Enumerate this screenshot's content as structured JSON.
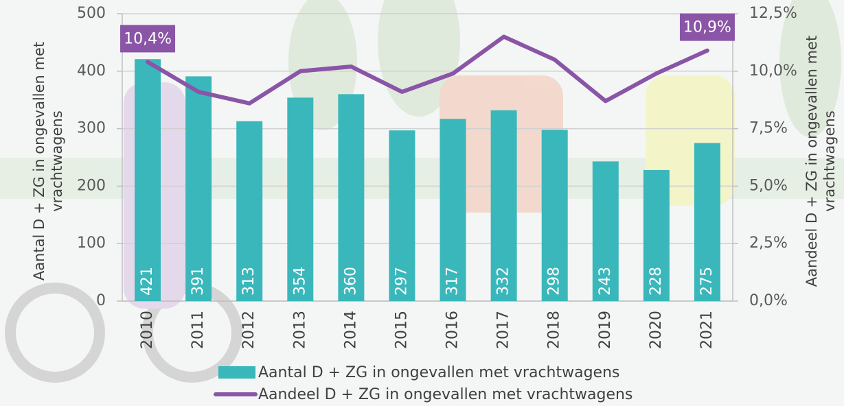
{
  "chart_data": {
    "type": "bar-line",
    "categories": [
      "2010",
      "2011",
      "2012",
      "2013",
      "2014",
      "2015",
      "2016",
      "2017",
      "2018",
      "2019",
      "2020",
      "2021"
    ],
    "series": [
      {
        "name": "Aantal D + ZG in ongevallen met vrachtwagens",
        "type": "bar",
        "color": "#3ab7bb",
        "values": [
          421,
          391,
          313,
          354,
          360,
          297,
          317,
          332,
          298,
          243,
          228,
          275
        ]
      },
      {
        "name": "Aandeel D + ZG in ongevallen met vrachtwagens",
        "type": "line",
        "axis": "y2",
        "color": "#8a55a6",
        "values": [
          10.4,
          9.1,
          8.6,
          10.0,
          10.2,
          9.1,
          9.9,
          11.5,
          10.5,
          8.7,
          9.9,
          10.9
        ],
        "value_labels": [
          "10,4%",
          null,
          null,
          null,
          null,
          null,
          null,
          null,
          null,
          null,
          null,
          "10,9%"
        ]
      }
    ],
    "ylabel": "Aantal D + ZG in ongevallen met vrachtwagens",
    "y2label": "Aandeel D + ZG in ongevallen met vrachtwagens",
    "ylim": [
      0,
      500
    ],
    "yticks": [
      0,
      100,
      200,
      300,
      400,
      500
    ],
    "y2lim": [
      0,
      12.5
    ],
    "y2ticks": [
      {
        "value": 0,
        "label": "0,0%"
      },
      {
        "value": 2.5,
        "label": "2,5%"
      },
      {
        "value": 5,
        "label": "5,0%"
      },
      {
        "value": 7.5,
        "label": "7,5%"
      },
      {
        "value": 10,
        "label": "10,0%"
      },
      {
        "value": 12.5,
        "label": "12,5%"
      }
    ],
    "grid": true
  }
}
